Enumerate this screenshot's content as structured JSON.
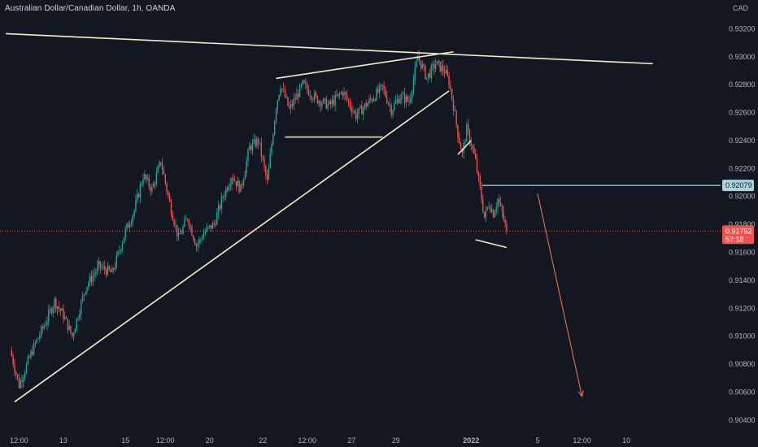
{
  "header": {
    "title": "Australian Dollar/Canadian Dollar, 1h, OANDA",
    "currency": "CAD"
  },
  "colors": {
    "background": "#131722",
    "up": "#26a69a",
    "down": "#ef5350",
    "trendline": "#f5ecc8",
    "level": "#a9d4de",
    "projection": "#e8704f",
    "price_line": "#ef5350",
    "axis_text": "#b2b5be"
  },
  "chart_data": {
    "type": "candlestick",
    "title": "Australian Dollar/Canadian Dollar, 1h, OANDA",
    "symbol": "AUDCAD",
    "timeframe": "1h",
    "exchange": "OANDA",
    "y_axis": {
      "unit": "CAD",
      "range": [
        0.903,
        0.934
      ],
      "ticks": [
        "0.93200",
        "0.93000",
        "0.92800",
        "0.92600",
        "0.92400",
        "0.92200",
        "0.92000",
        "0.91800",
        "0.91600",
        "0.91400",
        "0.91200",
        "0.91000",
        "0.90800",
        "0.90600",
        "0.90400"
      ],
      "tick_values": [
        0.932,
        0.93,
        0.928,
        0.926,
        0.924,
        0.922,
        0.92,
        0.918,
        0.916,
        0.914,
        0.912,
        0.91,
        0.908,
        0.906,
        0.904
      ]
    },
    "x_axis": {
      "ticks": [
        "12:00",
        "13",
        "15",
        "12:00",
        "20",
        "22",
        "12:00",
        "27",
        "29",
        "2022",
        "5",
        "12:00",
        "10"
      ],
      "tick_index": [
        2,
        12,
        26,
        35,
        45,
        57,
        67,
        77,
        87,
        104,
        119,
        129,
        139
      ]
    },
    "price_path": [
      {
        "bar": 0,
        "close": 0.909
      },
      {
        "bar": 2,
        "close": 0.9065
      },
      {
        "bar": 5,
        "close": 0.909
      },
      {
        "bar": 8,
        "close": 0.911
      },
      {
        "bar": 10,
        "close": 0.9125
      },
      {
        "bar": 12,
        "close": 0.9115
      },
      {
        "bar": 14,
        "close": 0.91
      },
      {
        "bar": 17,
        "close": 0.9135
      },
      {
        "bar": 20,
        "close": 0.915
      },
      {
        "bar": 23,
        "close": 0.9145
      },
      {
        "bar": 26,
        "close": 0.9175
      },
      {
        "bar": 28,
        "close": 0.919
      },
      {
        "bar": 30,
        "close": 0.9215
      },
      {
        "bar": 32,
        "close": 0.9205
      },
      {
        "bar": 34,
        "close": 0.9225
      },
      {
        "bar": 36,
        "close": 0.9195
      },
      {
        "bar": 38,
        "close": 0.917
      },
      {
        "bar": 40,
        "close": 0.9185
      },
      {
        "bar": 42,
        "close": 0.9165
      },
      {
        "bar": 44,
        "close": 0.9175
      },
      {
        "bar": 46,
        "close": 0.918
      },
      {
        "bar": 48,
        "close": 0.92
      },
      {
        "bar": 50,
        "close": 0.9215
      },
      {
        "bar": 52,
        "close": 0.9205
      },
      {
        "bar": 54,
        "close": 0.9235
      },
      {
        "bar": 56,
        "close": 0.924
      },
      {
        "bar": 58,
        "close": 0.921
      },
      {
        "bar": 60,
        "close": 0.9265
      },
      {
        "bar": 61,
        "close": 0.928
      },
      {
        "bar": 63,
        "close": 0.9262
      },
      {
        "bar": 66,
        "close": 0.928
      },
      {
        "bar": 69,
        "close": 0.927
      },
      {
        "bar": 72,
        "close": 0.9265
      },
      {
        "bar": 75,
        "close": 0.9275
      },
      {
        "bar": 78,
        "close": 0.9258
      },
      {
        "bar": 81,
        "close": 0.9268
      },
      {
        "bar": 84,
        "close": 0.9278
      },
      {
        "bar": 86,
        "close": 0.9262
      },
      {
        "bar": 88,
        "close": 0.9272
      },
      {
        "bar": 90,
        "close": 0.9268
      },
      {
        "bar": 92,
        "close": 0.93
      },
      {
        "bar": 94,
        "close": 0.9285
      },
      {
        "bar": 96,
        "close": 0.9295
      },
      {
        "bar": 98,
        "close": 0.929
      },
      {
        "bar": 99,
        "close": 0.9282
      },
      {
        "bar": 100,
        "close": 0.9265
      },
      {
        "bar": 101,
        "close": 0.9245
      },
      {
        "bar": 102,
        "close": 0.923
      },
      {
        "bar": 103,
        "close": 0.9248
      },
      {
        "bar": 104,
        "close": 0.9238
      },
      {
        "bar": 105,
        "close": 0.9225
      },
      {
        "bar": 106,
        "close": 0.9205
      },
      {
        "bar": 107,
        "close": 0.9185
      },
      {
        "bar": 108,
        "close": 0.9195
      },
      {
        "bar": 109,
        "close": 0.9188
      },
      {
        "bar": 110,
        "close": 0.9198
      },
      {
        "bar": 111,
        "close": 0.9188
      },
      {
        "bar": 112,
        "close": 0.9175
      }
    ],
    "last_price": "0.91752",
    "countdown": "57:18",
    "level_price": "0.92079",
    "level_value": 0.92079,
    "last_value": 0.91752,
    "lines": [
      {
        "name": "upper-descending-line",
        "from": {
          "bar": -1,
          "price": 0.93165
        },
        "to": {
          "bar": 145,
          "price": 0.9295
        }
      },
      {
        "name": "rising-support-line",
        "from": {
          "bar": 1,
          "price": 0.9053
        },
        "to": {
          "bar": 99,
          "price": 0.92755
        }
      },
      {
        "name": "wedge-upper-line",
        "from": {
          "bar": 60,
          "price": 0.92845
        },
        "to": {
          "bar": 100,
          "price": 0.93035
        }
      },
      {
        "name": "consolidation-low-line",
        "from": {
          "bar": 62,
          "price": 0.92425
        },
        "to": {
          "bar": 84,
          "price": 0.92425
        }
      },
      {
        "name": "small-flag-line",
        "from": {
          "bar": 101,
          "price": 0.923
        },
        "to": {
          "bar": 104,
          "price": 0.924
        }
      },
      {
        "name": "bottom-support-line",
        "from": {
          "bar": 105,
          "price": 0.9169
        },
        "to": {
          "bar": 112,
          "price": 0.91635
        }
      }
    ],
    "projection": {
      "from": {
        "bar": 119,
        "price": 0.9202
      },
      "to": {
        "bar": 129,
        "price": 0.9057
      }
    },
    "grid": false,
    "legend": "none"
  }
}
